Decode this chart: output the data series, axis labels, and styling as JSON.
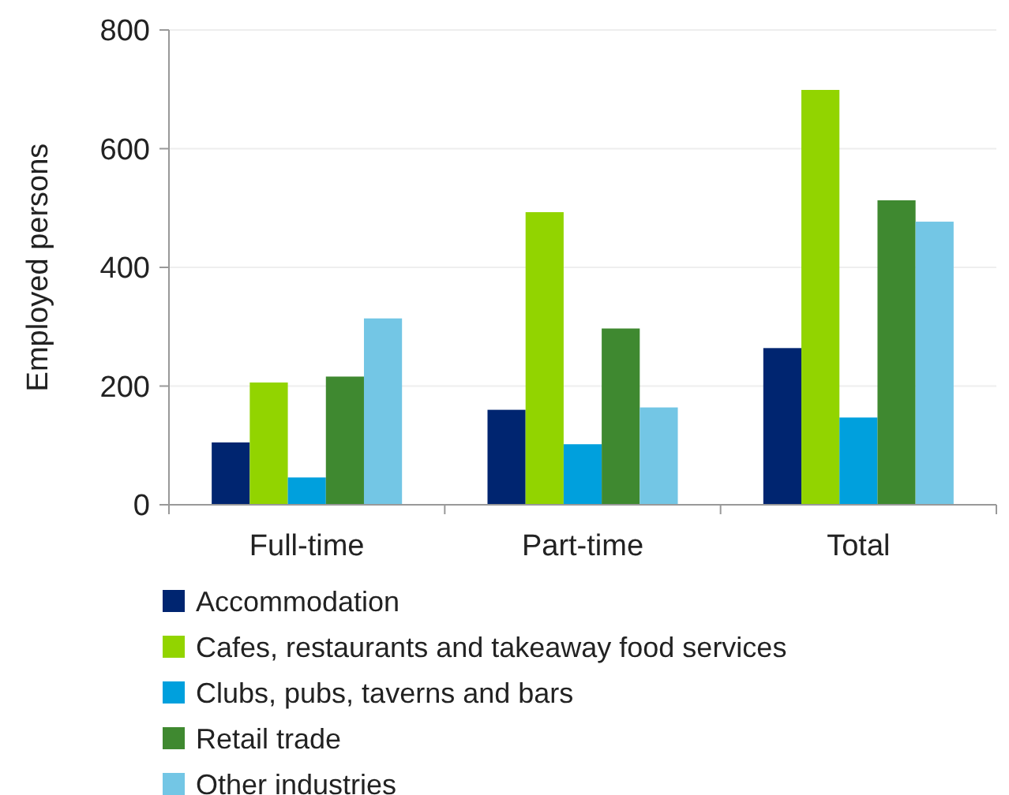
{
  "chart_data": {
    "type": "bar",
    "ylabel": "Employed persons",
    "categories": [
      "Full-time",
      "Part-time",
      "Total"
    ],
    "series": [
      {
        "name": "Accommodation",
        "color": "#002570",
        "values": [
          105,
          160,
          264
        ]
      },
      {
        "name": "Cafes, restaurants and takeaway food services",
        "color": "#92d400",
        "values": [
          206,
          493,
          699
        ]
      },
      {
        "name": "Clubs, pubs, taverns and bars",
        "color": "#00a0dd",
        "values": [
          46,
          102,
          147
        ]
      },
      {
        "name": "Retail trade",
        "color": "#3f8930",
        "values": [
          216,
          297,
          513
        ]
      },
      {
        "name": "Other industries",
        "color": "#73c6e5",
        "values": [
          314,
          164,
          477
        ]
      }
    ],
    "ylim": [
      0,
      800
    ],
    "yticks": [
      0,
      200,
      400,
      600,
      800
    ],
    "grid": "y",
    "legend": "bottom"
  }
}
